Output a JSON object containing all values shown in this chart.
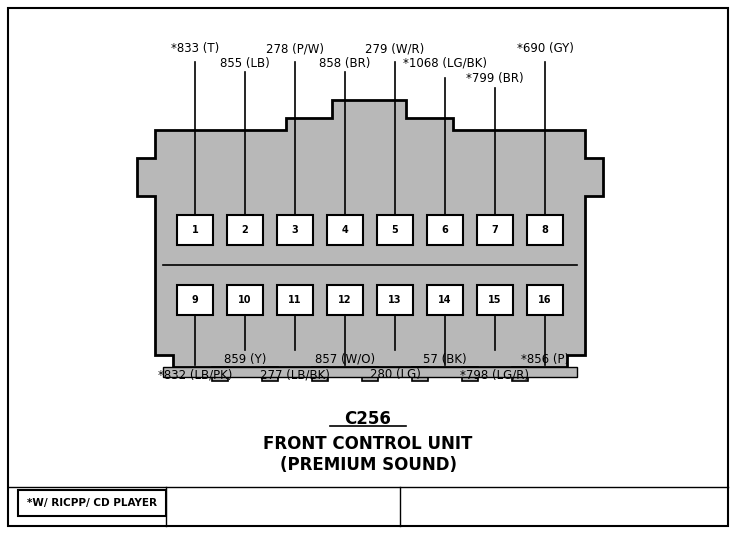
{
  "bg_color": "#ffffff",
  "connector_fill": "#b8b8b8",
  "pin_fill": "#ffffff",
  "title1": "C256",
  "title2": "FRONT CONTROL UNIT",
  "title3": "(PREMIUM SOUND)",
  "legend_label": "*W/ RICPP/ CD PLAYER",
  "top_labels": [
    {
      "text": "*833 (T)",
      "pin_idx": 0,
      "row": 0
    },
    {
      "text": "855 (LB)",
      "pin_idx": 1,
      "row": 1
    },
    {
      "text": "278 (P/W)",
      "pin_idx": 2,
      "row": 0
    },
    {
      "text": "858 (BR)",
      "pin_idx": 3,
      "row": 1
    },
    {
      "text": "279 (W/R)",
      "pin_idx": 4,
      "row": 0
    },
    {
      "text": "*1068 (LG/BK)",
      "pin_idx": 5,
      "row": 1
    },
    {
      "text": "*799 (BR)",
      "pin_idx": 6,
      "row": 2
    },
    {
      "text": "*690 (GY)",
      "pin_idx": 7,
      "row": 0
    }
  ],
  "bot_labels": [
    {
      "text": "*832 (LB/PK)",
      "pin_idx": 0,
      "row": 1
    },
    {
      "text": "859 (Y)",
      "pin_idx": 1,
      "row": 0
    },
    {
      "text": "277 (LB/BK)",
      "pin_idx": 2,
      "row": 1
    },
    {
      "text": "857 (W/O)",
      "pin_idx": 3,
      "row": 0
    },
    {
      "text": "280 (LG)",
      "pin_idx": 4,
      "row": 1
    },
    {
      "text": "57 (BK)",
      "pin_idx": 5,
      "row": 0
    },
    {
      "text": "*798 (LG/R)",
      "pin_idx": 6,
      "row": 1
    },
    {
      "text": "*856 (P)",
      "pin_idx": 7,
      "row": 0
    }
  ]
}
